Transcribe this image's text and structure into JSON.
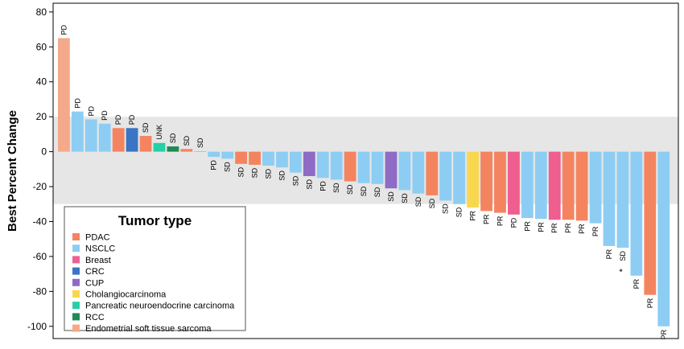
{
  "chart_data": {
    "type": "bar",
    "ylabel": "Best Percent Change",
    "ylim": [
      -107,
      85
    ],
    "yticks": [
      80,
      60,
      40,
      20,
      0,
      -20,
      -40,
      -60,
      -80,
      -100
    ],
    "shaded_band": [
      -30,
      20
    ],
    "legend": {
      "title": "Tumor type",
      "position": "bottom-left",
      "entries": [
        {
          "name": "PDAC",
          "color": "#F4845F"
        },
        {
          "name": "NSCLC",
          "color": "#8DCDF3"
        },
        {
          "name": "Breast",
          "color": "#EE5E8E"
        },
        {
          "name": "CRC",
          "color": "#3A74C4"
        },
        {
          "name": "CUP",
          "color": "#8E6BC4"
        },
        {
          "name": "Cholangiocarcinoma",
          "color": "#F8D74F"
        },
        {
          "name": "Pancreatic neuroendocrine carcinoma",
          "color": "#26D0A4"
        },
        {
          "name": "RCC",
          "color": "#1F8A55"
        },
        {
          "name": "Endometrial soft tissue sarcoma",
          "color": "#F4A98A"
        }
      ]
    },
    "bars": [
      {
        "value": 65,
        "label": "PD",
        "type": "Endometrial soft tissue sarcoma"
      },
      {
        "value": 23,
        "label": "PD",
        "type": "NSCLC"
      },
      {
        "value": 18.5,
        "label": "PD",
        "type": "NSCLC"
      },
      {
        "value": 16,
        "label": "PD",
        "type": "NSCLC"
      },
      {
        "value": 13.5,
        "label": "PD",
        "type": "PDAC"
      },
      {
        "value": 13.5,
        "label": "PD",
        "type": "CRC"
      },
      {
        "value": 9,
        "label": "SD",
        "type": "PDAC"
      },
      {
        "value": 5,
        "label": "UNK",
        "type": "Pancreatic neuroendocrine carcinoma"
      },
      {
        "value": 3,
        "label": "SD",
        "type": "RCC"
      },
      {
        "value": 1.5,
        "label": "SD",
        "type": "PDAC"
      },
      {
        "value": 0.3,
        "label": "SD",
        "type": "NSCLC"
      },
      {
        "value": -3,
        "label": "PD",
        "type": "NSCLC"
      },
      {
        "value": -4,
        "label": "SD",
        "type": "NSCLC"
      },
      {
        "value": -7,
        "label": "SD",
        "type": "PDAC"
      },
      {
        "value": -7.5,
        "label": "SD",
        "type": "PDAC"
      },
      {
        "value": -8,
        "label": "SD",
        "type": "NSCLC"
      },
      {
        "value": -9,
        "label": "SD",
        "type": "NSCLC"
      },
      {
        "value": -12,
        "label": "SD",
        "type": "NSCLC"
      },
      {
        "value": -14,
        "label": "SD",
        "type": "CUP"
      },
      {
        "value": -15,
        "label": "PD",
        "type": "NSCLC"
      },
      {
        "value": -16,
        "label": "SD",
        "type": "NSCLC"
      },
      {
        "value": -17,
        "label": "SD",
        "type": "PDAC"
      },
      {
        "value": -18,
        "label": "SD",
        "type": "NSCLC"
      },
      {
        "value": -18.5,
        "label": "SD",
        "type": "NSCLC"
      },
      {
        "value": -21,
        "label": "SD",
        "type": "CUP"
      },
      {
        "value": -22,
        "label": "SD",
        "type": "NSCLC"
      },
      {
        "value": -24,
        "label": "SD",
        "type": "NSCLC"
      },
      {
        "value": -25,
        "label": "SD",
        "type": "PDAC"
      },
      {
        "value": -28,
        "label": "SD",
        "type": "NSCLC"
      },
      {
        "value": -30,
        "label": "SD",
        "type": "NSCLC"
      },
      {
        "value": -32,
        "label": "PR",
        "type": "Cholangiocarcinoma"
      },
      {
        "value": -34,
        "label": "PR",
        "type": "PDAC"
      },
      {
        "value": -35,
        "label": "PR",
        "type": "PDAC"
      },
      {
        "value": -36,
        "label": "PD",
        "type": "Breast"
      },
      {
        "value": -38,
        "label": "PR",
        "type": "NSCLC"
      },
      {
        "value": -38.5,
        "label": "PR",
        "type": "NSCLC"
      },
      {
        "value": -39,
        "label": "PR",
        "type": "Breast"
      },
      {
        "value": -39,
        "label": "PR",
        "type": "PDAC"
      },
      {
        "value": -39.5,
        "label": "PR",
        "type": "PDAC"
      },
      {
        "value": -41,
        "label": "PR",
        "type": "NSCLC"
      },
      {
        "value": -54,
        "label": "PR",
        "type": "NSCLC"
      },
      {
        "value": -55,
        "label": "SD",
        "type": "NSCLC",
        "marker": "*"
      },
      {
        "value": -71,
        "label": "PR",
        "type": "NSCLC"
      },
      {
        "value": -82,
        "label": "PR",
        "type": "PDAC"
      },
      {
        "value": -100,
        "label": "PR",
        "type": "NSCLC"
      }
    ]
  }
}
